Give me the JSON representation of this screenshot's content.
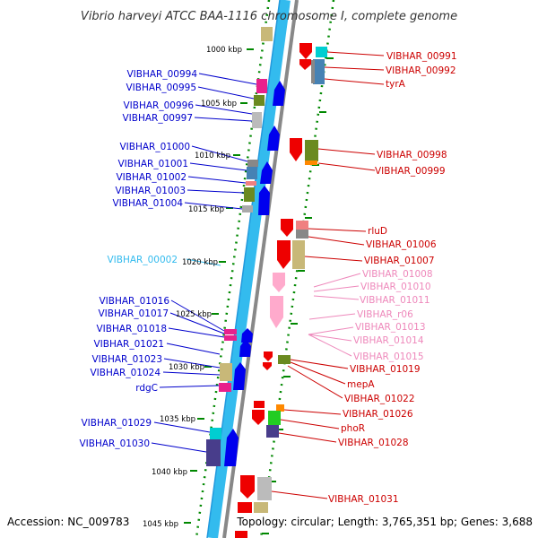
{
  "title": "Vibrio harveyi ATCC BAA-1116 chromosome I, complete genome",
  "accession": "Accession: NC_009783",
  "topology": "Topology: circular; Length: 3,765,351 bp; Genes: 3,688",
  "kbp_labels": [
    "1000 kbp",
    "1005 kbp",
    "1010 kbp",
    "1015 kbp",
    "1020 kbp",
    "1025 kbp",
    "1030 kbp",
    "1035 kbp",
    "1040 kbp",
    "1045 kbp"
  ],
  "left_labels": [
    "VIBHAR_00994",
    "VIBHAR_00995",
    "VIBHAR_00996",
    "VIBHAR_00997",
    "VIBHAR_01000",
    "VIBHAR_01001",
    "VIBHAR_01002",
    "VIBHAR_01003",
    "VIBHAR_01004",
    "VIBHAR_00002",
    "VIBHAR_01016",
    "VIBHAR_01017",
    "VIBHAR_01018",
    "VIBHAR_01021",
    "VIBHAR_01023",
    "VIBHAR_01024",
    "rdgC",
    "VIBHAR_01029",
    "VIBHAR_01030"
  ],
  "right_labels": [
    "VIBHAR_00991",
    "VIBHAR_00992",
    "tyrA",
    "VIBHAR_00998",
    "VIBHAR_00999",
    "rluD",
    "VIBHAR_01006",
    "VIBHAR_01007",
    "VIBHAR_01008",
    "VIBHAR_01010",
    "VIBHAR_01011",
    "VIBHAR_r06",
    "VIBHAR_01013",
    "VIBHAR_01014",
    "VIBHAR_01015",
    "VIBHAR_01019",
    "mepA",
    "VIBHAR_01022",
    "VIBHAR_01026",
    "phoR",
    "VIBHAR_01028",
    "VIBHAR_01031"
  ],
  "colors": {
    "reverse_label": "#0000cc",
    "rna_label": "#33bbee",
    "forward_label": "#cc0000",
    "pseudo_label": "#ee88bb",
    "backbone_blue": "#33bbee",
    "backbone_gray": "#888888",
    "dot_green": "#008800"
  }
}
